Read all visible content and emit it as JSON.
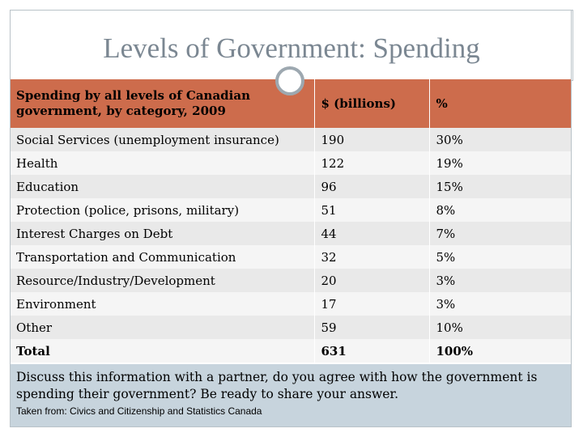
{
  "slide": {
    "title": "Levels of Government: Spending"
  },
  "table": {
    "header": {
      "category": "Spending by all levels of Canadian government, by category, 2009",
      "amount": "$ (billions)",
      "percent": "%"
    },
    "rows": [
      {
        "category": "Social Services (unemployment insurance)",
        "amount": "190",
        "percent": "30%"
      },
      {
        "category": "Health",
        "amount": "122",
        "percent": "19%"
      },
      {
        "category": "Education",
        "amount": "96",
        "percent": "15%"
      },
      {
        "category": "Protection (police, prisons, military)",
        "amount": "51",
        "percent": "8%"
      },
      {
        "category": "Interest Charges on Debt",
        "amount": "44",
        "percent": "7%"
      },
      {
        "category": "Transportation and Communication",
        "amount": "32",
        "percent": "5%"
      },
      {
        "category": "Resource/Industry/Development",
        "amount": "20",
        "percent": "3%"
      },
      {
        "category": "Environment",
        "amount": "17",
        "percent": "3%"
      },
      {
        "category": "Other",
        "amount": "59",
        "percent": "10%"
      },
      {
        "category": "Total",
        "amount": "631",
        "percent": "100%"
      }
    ]
  },
  "footer": {
    "discussion": "Discuss this information with a partner, do you agree with how the government is spending their government? Be ready to share your answer.",
    "source": "Taken from: Civics and Citizenship and Statistics Canada"
  },
  "colors": {
    "header_accent": "#cd6c4c",
    "footer_bg": "#c7d4dd",
    "title_text": "#7b8792"
  }
}
